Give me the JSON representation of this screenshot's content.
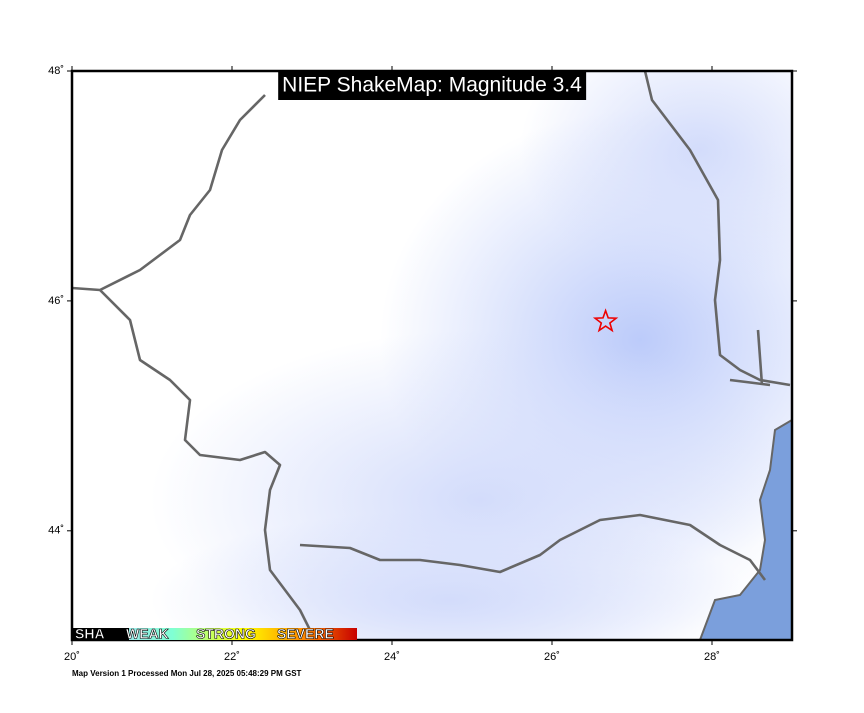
{
  "map": {
    "title": "NIEP ShakeMap: Magnitude 3.4",
    "lon_range": [
      20,
      29
    ],
    "lat_range": [
      43.05,
      48
    ],
    "lon_ticks": [
      {
        "value": 20,
        "label": "20˚"
      },
      {
        "value": 22,
        "label": "22˚"
      },
      {
        "value": 24,
        "label": "24˚"
      },
      {
        "value": 26,
        "label": "26˚"
      },
      {
        "value": 28,
        "label": "28˚"
      }
    ],
    "lat_ticks": [
      {
        "value": 48,
        "label": "48˚"
      },
      {
        "value": 46,
        "label": "46˚"
      },
      {
        "value": 44,
        "label": "44˚"
      }
    ],
    "epicenter": {
      "lon": 26.67,
      "lat": 45.82
    },
    "legend": {
      "labels": [
        "SHA",
        "WEAK",
        "STRONG",
        "SEVERE"
      ]
    },
    "footer": "Map Version 1 Processed Mon Jul 28, 2025 05:48:29 PM GST"
  }
}
